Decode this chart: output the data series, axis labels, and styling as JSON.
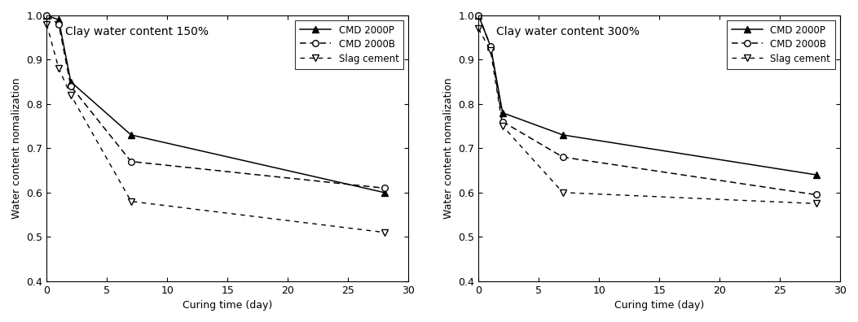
{
  "left_title": "Clay water content 150%",
  "right_title": "Clay water content 300%",
  "xlabel": "Curing time (day)",
  "ylabel": "Water content nomalization",
  "xlim": [
    0,
    30
  ],
  "ylim": [
    0.4,
    1.0
  ],
  "xticks": [
    0,
    5,
    10,
    15,
    20,
    25,
    30
  ],
  "yticks": [
    0.4,
    0.5,
    0.6,
    0.7,
    0.8,
    0.9,
    1.0
  ],
  "left": {
    "CMD2000P": {
      "x": [
        0,
        1,
        2,
        7,
        28
      ],
      "y": [
        1.0,
        0.99,
        0.85,
        0.73,
        0.6
      ]
    },
    "CMD2000B": {
      "x": [
        0,
        1,
        2,
        7,
        28
      ],
      "y": [
        1.0,
        0.98,
        0.84,
        0.67,
        0.61
      ]
    },
    "Slag": {
      "x": [
        0,
        1,
        2,
        7,
        28
      ],
      "y": [
        0.98,
        0.88,
        0.82,
        0.58,
        0.51
      ]
    }
  },
  "right": {
    "CMD2000P": {
      "x": [
        0,
        1,
        2,
        7,
        28
      ],
      "y": [
        1.0,
        0.93,
        0.78,
        0.73,
        0.64
      ]
    },
    "CMD2000B": {
      "x": [
        0,
        1,
        2,
        7,
        28
      ],
      "y": [
        1.0,
        0.93,
        0.76,
        0.68,
        0.595
      ]
    },
    "Slag": {
      "x": [
        0,
        1,
        2,
        7,
        28
      ],
      "y": [
        0.97,
        0.92,
        0.75,
        0.6,
        0.575
      ]
    }
  },
  "legend_labels": [
    "CMD 2000P",
    "CMD 2000B",
    "Slag cement"
  ],
  "background_color": "#ffffff",
  "line_color": "#000000",
  "title_fontsize": 10,
  "axis_fontsize": 9,
  "tick_fontsize": 9,
  "legend_fontsize": 8.5,
  "figsize": [
    10.53,
    3.96
  ],
  "dpi": 100
}
